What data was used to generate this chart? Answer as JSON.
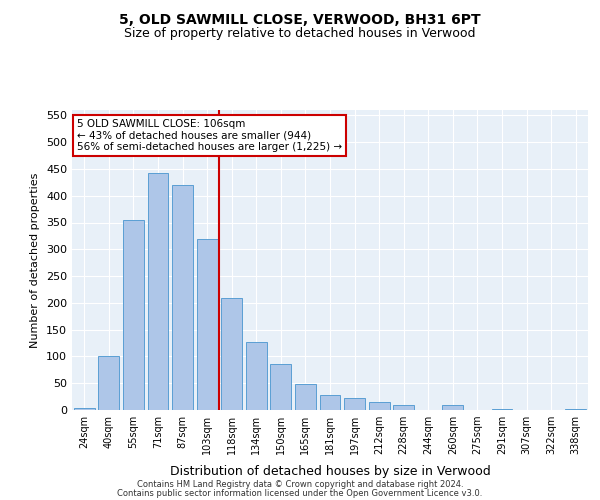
{
  "title1": "5, OLD SAWMILL CLOSE, VERWOOD, BH31 6PT",
  "title2": "Size of property relative to detached houses in Verwood",
  "xlabel": "Distribution of detached houses by size in Verwood",
  "ylabel": "Number of detached properties",
  "categories": [
    "24sqm",
    "40sqm",
    "55sqm",
    "71sqm",
    "87sqm",
    "103sqm",
    "118sqm",
    "134sqm",
    "150sqm",
    "165sqm",
    "181sqm",
    "197sqm",
    "212sqm",
    "228sqm",
    "244sqm",
    "260sqm",
    "275sqm",
    "291sqm",
    "307sqm",
    "322sqm",
    "338sqm"
  ],
  "values": [
    3,
    100,
    355,
    443,
    420,
    320,
    210,
    127,
    85,
    48,
    28,
    22,
    15,
    10,
    0,
    9,
    0,
    2,
    0,
    0,
    2
  ],
  "bar_color": "#aec6e8",
  "bar_edge_color": "#5a9fd4",
  "vline_x": 5.5,
  "vline_color": "#cc0000",
  "annotation_text": "5 OLD SAWMILL CLOSE: 106sqm\n← 43% of detached houses are smaller (944)\n56% of semi-detached houses are larger (1,225) →",
  "annotation_box_color": "#cc0000",
  "ylim": [
    0,
    560
  ],
  "yticks": [
    0,
    50,
    100,
    150,
    200,
    250,
    300,
    350,
    400,
    450,
    500,
    550
  ],
  "footer1": "Contains HM Land Registry data © Crown copyright and database right 2024.",
  "footer2": "Contains public sector information licensed under the Open Government Licence v3.0.",
  "bg_color": "#e8f0f8",
  "fig_bg_color": "#ffffff"
}
